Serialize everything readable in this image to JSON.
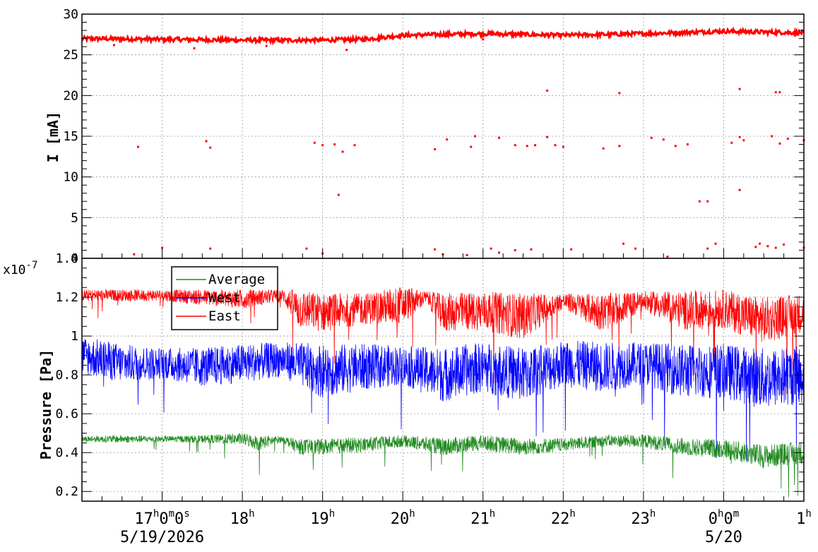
{
  "chart_data": [
    {
      "type": "scatter",
      "panel": "top",
      "ylabel": "I [mA]",
      "ylim": [
        0,
        30
      ],
      "y_ticks": [
        "0",
        "5",
        "10",
        "15",
        "20",
        "25",
        "30"
      ],
      "xlim_hours": [
        16.0,
        25.0
      ],
      "grid": true,
      "series": [
        {
          "color": "#ff0000",
          "trend": {
            "hours": [
              16.0,
              17.0,
              18.0,
              19.0,
              19.5,
              20.0,
              21.0,
              22.0,
              23.0,
              24.0,
              25.0
            ],
            "values": [
              27.0,
              26.9,
              26.8,
              26.8,
              26.9,
              27.4,
              27.6,
              27.4,
              27.6,
              27.9,
              27.7
            ]
          },
          "outliers": {
            "hours": [
              16.4,
              16.7,
              17.4,
              17.6,
              17.55,
              18.3,
              18.5,
              18.9,
              19.0,
              19.15,
              19.25,
              19.3,
              19.4,
              19.7,
              20.4,
              20.55,
              20.85,
              20.9,
              21.0,
              21.2,
              21.4,
              21.55,
              21.65,
              21.8,
              21.9,
              22.0,
              22.5,
              22.7,
              23.1,
              23.25,
              23.4,
              23.55,
              23.8,
              24.1,
              24.2,
              24.25,
              24.6,
              24.7,
              24.8,
              25.0,
              19.2,
              23.7,
              24.2,
              21.8,
              22.7,
              24.2,
              24.65,
              24.7,
              16.65,
              17.0,
              17.6,
              18.8,
              19.0,
              20.4,
              20.5,
              20.8,
              21.1,
              21.2,
              21.4,
              21.6,
              22.1,
              22.75,
              22.9,
              23.3,
              23.8,
              23.9,
              24.4,
              24.45,
              24.55,
              24.65,
              24.75,
              25.0
            ],
            "values": [
              26.2,
              13.7,
              25.8,
              13.6,
              14.4,
              26.1,
              26.5,
              14.2,
              13.9,
              14.0,
              13.1,
              25.6,
              13.9,
              26.7,
              13.4,
              14.6,
              13.7,
              15.0,
              26.9,
              14.8,
              13.9,
              13.8,
              13.9,
              14.9,
              13.9,
              13.7,
              13.5,
              13.8,
              14.8,
              14.6,
              13.8,
              14.0,
              7.0,
              14.2,
              14.9,
              14.5,
              15.0,
              14.1,
              14.7,
              14.5,
              7.8,
              7.0,
              8.4,
              20.6,
              20.3,
              20.8,
              20.4,
              20.4,
              0.5,
              1.3,
              1.2,
              1.2,
              0.6,
              1.1,
              0.5,
              0.4,
              1.2,
              0.7,
              1.0,
              1.1,
              1.1,
              1.8,
              1.2,
              0.2,
              1.2,
              1.8,
              1.4,
              1.8,
              1.5,
              1.3,
              1.7,
              1.3
            ]
          }
        }
      ]
    },
    {
      "type": "line",
      "panel": "bottom",
      "ylabel": "Pressure [Pa]",
      "y_exponent": "x10",
      "y_exponent_power": "-7",
      "ylim": [
        0.15,
        1.4
      ],
      "y_ticks": [
        "0.2",
        "0.4",
        "0.6",
        "0.8",
        "1",
        "1.2",
        "1.4"
      ],
      "xlim_hours": [
        16.0,
        25.0
      ],
      "grid": true,
      "legend_position": "top-left",
      "series": [
        {
          "name": "Average",
          "color": "#228b22",
          "hours": [
            16.0,
            16.5,
            17.0,
            17.5,
            18.0,
            18.2,
            18.5,
            18.7,
            19.0,
            19.5,
            20.0,
            20.5,
            21.0,
            21.5,
            22.0,
            22.5,
            23.0,
            23.5,
            24.0,
            24.5,
            25.0
          ],
          "base": [
            0.47,
            0.47,
            0.47,
            0.47,
            0.47,
            0.45,
            0.47,
            0.43,
            0.43,
            0.44,
            0.46,
            0.43,
            0.45,
            0.43,
            0.44,
            0.46,
            0.46,
            0.43,
            0.42,
            0.38,
            0.4
          ],
          "spread": [
            0.015,
            0.02,
            0.015,
            0.02,
            0.03,
            0.04,
            0.015,
            0.04,
            0.04,
            0.04,
            0.03,
            0.045,
            0.04,
            0.045,
            0.035,
            0.03,
            0.035,
            0.045,
            0.05,
            0.06,
            0.06
          ]
        },
        {
          "name": "West",
          "color": "#0000ff",
          "hours": [
            16.0,
            16.5,
            17.0,
            17.5,
            18.0,
            18.5,
            19.0,
            19.5,
            20.0,
            20.5,
            21.0,
            21.5,
            22.0,
            22.5,
            23.0,
            23.5,
            24.0,
            24.5,
            25.0
          ],
          "base": [
            0.9,
            0.86,
            0.86,
            0.84,
            0.86,
            0.88,
            0.82,
            0.84,
            0.85,
            0.8,
            0.84,
            0.8,
            0.86,
            0.84,
            0.86,
            0.82,
            0.82,
            0.78,
            0.8
          ],
          "spread": [
            0.1,
            0.1,
            0.08,
            0.1,
            0.1,
            0.09,
            0.14,
            0.12,
            0.1,
            0.14,
            0.13,
            0.14,
            0.12,
            0.13,
            0.11,
            0.14,
            0.14,
            0.16,
            0.15
          ]
        },
        {
          "name": "East",
          "color": "#ff0000",
          "hours": [
            16.0,
            16.5,
            17.0,
            17.5,
            18.0,
            18.5,
            18.7,
            19.0,
            19.5,
            20.0,
            20.3,
            20.5,
            21.0,
            21.5,
            22.0,
            22.5,
            23.0,
            23.5,
            24.0,
            24.5,
            25.0
          ],
          "base": [
            1.21,
            1.21,
            1.21,
            1.2,
            1.19,
            1.21,
            1.14,
            1.12,
            1.14,
            1.16,
            1.2,
            1.12,
            1.13,
            1.1,
            1.18,
            1.12,
            1.18,
            1.13,
            1.14,
            1.08,
            1.12
          ],
          "spread": [
            0.03,
            0.03,
            0.03,
            0.04,
            0.05,
            0.03,
            0.1,
            0.1,
            0.08,
            0.1,
            0.03,
            0.1,
            0.1,
            0.12,
            0.04,
            0.1,
            0.05,
            0.1,
            0.1,
            0.12,
            0.1
          ]
        }
      ]
    }
  ],
  "x_axis": {
    "ticks": [
      {
        "hour": 17,
        "label": "17",
        "suffix": "0",
        "suffix2": "0",
        "sup1": "h",
        "sup2": "m",
        "sup3": "s",
        "date": "5/19/2026"
      },
      {
        "hour": 18,
        "label": "18",
        "sup1": "h"
      },
      {
        "hour": 19,
        "label": "19",
        "sup1": "h"
      },
      {
        "hour": 20,
        "label": "20",
        "sup1": "h"
      },
      {
        "hour": 21,
        "label": "21",
        "sup1": "h"
      },
      {
        "hour": 22,
        "label": "22",
        "sup1": "h"
      },
      {
        "hour": 23,
        "label": "23",
        "sup1": "h"
      },
      {
        "hour": 24,
        "label": "0",
        "suffix": "0",
        "sup1": "h",
        "sup2": "m",
        "date": "5/20"
      },
      {
        "hour": 25,
        "label": "1",
        "sup1": "h"
      }
    ]
  },
  "legend": {
    "entries": [
      "Average",
      "West",
      "East"
    ]
  }
}
